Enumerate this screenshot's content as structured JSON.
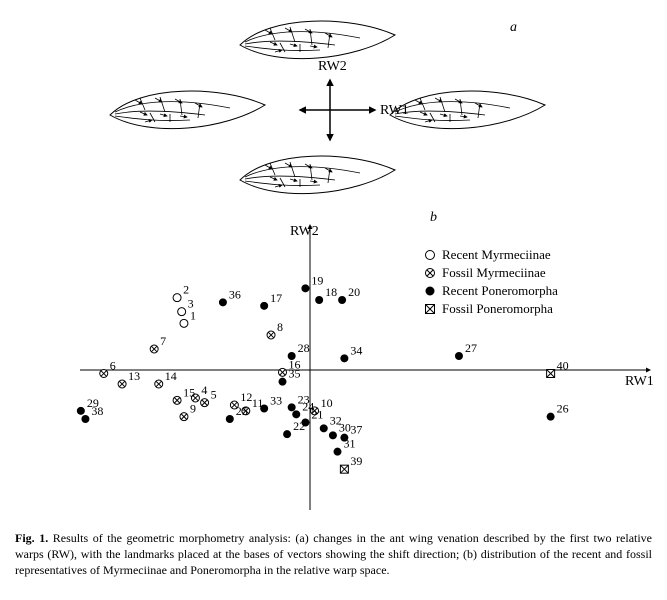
{
  "panel_a": {
    "label": "a",
    "label_italic": true,
    "axes": {
      "x": "RW1",
      "y": "RW2"
    },
    "axis_fontsize": 14,
    "stroke_color": "#000000",
    "background": "#ffffff"
  },
  "panel_b": {
    "label": "b",
    "label_italic": true,
    "axes": {
      "x": "RW1",
      "y": "RW2"
    },
    "axis_fontsize": 14,
    "xlim": [
      -1.2,
      1.2
    ],
    "ylim": [
      -1.2,
      1.2
    ],
    "point_label_fontsize": 12,
    "stroke_color": "#000000",
    "legend": [
      {
        "label": "Recent Myrmeciinae",
        "marker": "open_circle"
      },
      {
        "label": "Fossil Myrmeciinae",
        "marker": "crossed_circle"
      },
      {
        "label": "Recent Poneromorpha",
        "marker": "filled_circle"
      },
      {
        "label": "Fossil Poneromorpha",
        "marker": "crossed_square"
      }
    ],
    "points": [
      {
        "n": 1,
        "marker": "open_circle",
        "x": -0.55,
        "y": 0.4
      },
      {
        "n": 2,
        "marker": "open_circle",
        "x": -0.58,
        "y": 0.62
      },
      {
        "n": 3,
        "marker": "open_circle",
        "x": -0.56,
        "y": 0.5
      },
      {
        "n": 4,
        "marker": "crossed_circle",
        "x": -0.5,
        "y": -0.24
      },
      {
        "n": 5,
        "marker": "crossed_circle",
        "x": -0.46,
        "y": -0.28
      },
      {
        "n": 6,
        "marker": "crossed_circle",
        "x": -0.9,
        "y": -0.03
      },
      {
        "n": 7,
        "marker": "crossed_circle",
        "x": -0.68,
        "y": 0.18
      },
      {
        "n": 8,
        "marker": "crossed_circle",
        "x": -0.17,
        "y": 0.3
      },
      {
        "n": 9,
        "marker": "crossed_circle",
        "x": -0.55,
        "y": -0.4
      },
      {
        "n": 10,
        "marker": "crossed_circle",
        "x": 0.02,
        "y": -0.35
      },
      {
        "n": 11,
        "marker": "crossed_circle",
        "x": -0.28,
        "y": -0.35
      },
      {
        "n": 12,
        "marker": "crossed_circle",
        "x": -0.33,
        "y": -0.3
      },
      {
        "n": 13,
        "marker": "crossed_circle",
        "x": -0.82,
        "y": -0.12
      },
      {
        "n": 14,
        "marker": "crossed_circle",
        "x": -0.66,
        "y": -0.12
      },
      {
        "n": 15,
        "marker": "crossed_circle",
        "x": -0.58,
        "y": -0.26
      },
      {
        "n": 16,
        "marker": "crossed_circle",
        "x": -0.12,
        "y": -0.02
      },
      {
        "n": 17,
        "marker": "filled_circle",
        "x": -0.2,
        "y": 0.55
      },
      {
        "n": 18,
        "marker": "filled_circle",
        "x": 0.04,
        "y": 0.6
      },
      {
        "n": 19,
        "marker": "filled_circle",
        "x": -0.02,
        "y": 0.7
      },
      {
        "n": 20,
        "marker": "filled_circle",
        "x": 0.14,
        "y": 0.6
      },
      {
        "n": 21,
        "marker": "filled_circle",
        "x": -0.02,
        "y": -0.45
      },
      {
        "n": 22,
        "marker": "filled_circle",
        "x": -0.1,
        "y": -0.55
      },
      {
        "n": 23,
        "marker": "filled_circle",
        "x": -0.08,
        "y": -0.32
      },
      {
        "n": 24,
        "marker": "filled_circle",
        "x": -0.06,
        "y": -0.38
      },
      {
        "n": 25,
        "marker": "filled_circle",
        "x": -0.35,
        "y": -0.42
      },
      {
        "n": 26,
        "marker": "filled_circle",
        "x": 1.05,
        "y": -0.4
      },
      {
        "n": 27,
        "marker": "filled_circle",
        "x": 0.65,
        "y": 0.12
      },
      {
        "n": 28,
        "marker": "filled_circle",
        "x": -0.08,
        "y": 0.12
      },
      {
        "n": 29,
        "marker": "filled_circle",
        "x": -1.0,
        "y": -0.35
      },
      {
        "n": 30,
        "marker": "filled_circle",
        "x": 0.1,
        "y": -0.56
      },
      {
        "n": 31,
        "marker": "filled_circle",
        "x": 0.12,
        "y": -0.7
      },
      {
        "n": 32,
        "marker": "filled_circle",
        "x": 0.06,
        "y": -0.5
      },
      {
        "n": 33,
        "marker": "filled_circle",
        "x": -0.2,
        "y": -0.33
      },
      {
        "n": 34,
        "marker": "filled_circle",
        "x": 0.15,
        "y": 0.1
      },
      {
        "n": 35,
        "marker": "filled_circle",
        "x": -0.12,
        "y": -0.1
      },
      {
        "n": 36,
        "marker": "filled_circle",
        "x": -0.38,
        "y": 0.58
      },
      {
        "n": 37,
        "marker": "filled_circle",
        "x": 0.15,
        "y": -0.58
      },
      {
        "n": 38,
        "marker": "filled_circle",
        "x": -0.98,
        "y": -0.42
      },
      {
        "n": 39,
        "marker": "crossed_square",
        "x": 0.15,
        "y": -0.85
      },
      {
        "n": 40,
        "marker": "crossed_square",
        "x": 1.05,
        "y": -0.03
      }
    ]
  },
  "caption": {
    "lead": "Fig. 1.",
    "body": "Results of the geometric morphometry analysis: (a) changes in the ant wing venation described by the first two relative warps (RW), with the landmarks placed at the bases of vectors showing the shift direction; (b) distribution of the recent and fossil representatives of Myrmeciinae and Poneromorpha in the relative warp space."
  }
}
